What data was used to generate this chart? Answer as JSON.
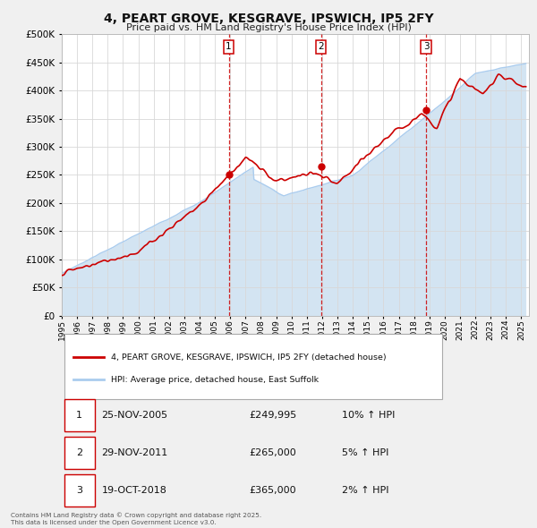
{
  "title": "4, PEART GROVE, KESGRAVE, IPSWICH, IP5 2FY",
  "subtitle": "Price paid vs. HM Land Registry's House Price Index (HPI)",
  "background_color": "#f0f0f0",
  "chart_bg": "#ffffff",
  "ylim": [
    0,
    500000
  ],
  "yticks": [
    0,
    50000,
    100000,
    150000,
    200000,
    250000,
    300000,
    350000,
    400000,
    450000,
    500000
  ],
  "ytick_labels": [
    "£0",
    "£50K",
    "£100K",
    "£150K",
    "£200K",
    "£250K",
    "£300K",
    "£350K",
    "£400K",
    "£450K",
    "£500K"
  ],
  "xmin": 1995,
  "xmax": 2025.5,
  "xticks": [
    1995,
    1996,
    1997,
    1998,
    1999,
    2000,
    2001,
    2002,
    2003,
    2004,
    2005,
    2006,
    2007,
    2008,
    2009,
    2010,
    2011,
    2012,
    2013,
    2014,
    2015,
    2016,
    2017,
    2018,
    2019,
    2020,
    2021,
    2022,
    2023,
    2024,
    2025
  ],
  "sale_color": "#cc0000",
  "hpi_line_color": "#aaccee",
  "hpi_fill_color": "#cce0f0",
  "sale_dates": [
    2005.9,
    2011.92,
    2018.8
  ],
  "sale_prices": [
    249995,
    265000,
    365000
  ],
  "vline_labels": [
    "1",
    "2",
    "3"
  ],
  "legend_sale_label": "4, PEART GROVE, KESGRAVE, IPSWICH, IP5 2FY (detached house)",
  "legend_hpi_label": "HPI: Average price, detached house, East Suffolk",
  "table_rows": [
    {
      "num": "1",
      "date": "25-NOV-2005",
      "price": "£249,995",
      "change": "10% ↑ HPI"
    },
    {
      "num": "2",
      "date": "29-NOV-2011",
      "price": "£265,000",
      "change": "5% ↑ HPI"
    },
    {
      "num": "3",
      "date": "19-OCT-2018",
      "price": "£365,000",
      "change": "2% ↑ HPI"
    }
  ],
  "footnote1": "Contains HM Land Registry data © Crown copyright and database right 2025.",
  "footnote2": "This data is licensed under the Open Government Licence v3.0."
}
